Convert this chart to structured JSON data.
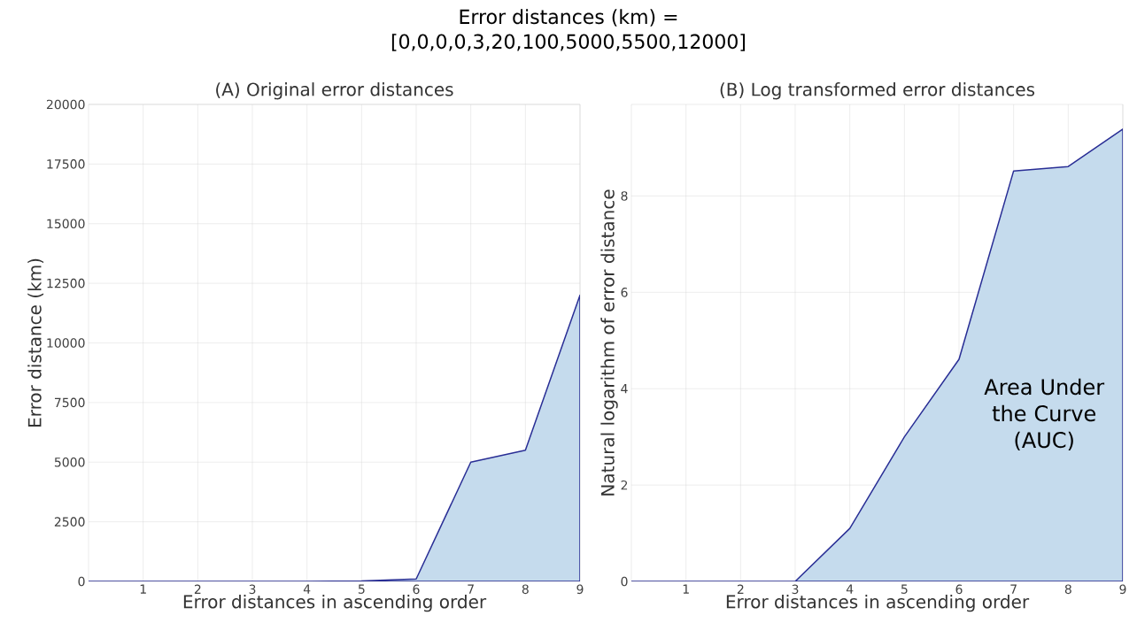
{
  "chart_data": [
    {
      "type": "area",
      "title": "(A) Original error distances",
      "xlabel": "Error distances in ascending order",
      "ylabel": "Error distance (km)",
      "x": [
        0,
        1,
        2,
        3,
        4,
        5,
        6,
        7,
        8,
        9
      ],
      "values": [
        0,
        0,
        0,
        0,
        3,
        20,
        100,
        5000,
        5500,
        12000
      ],
      "color": "#c5dbed",
      "xlim": [
        0,
        9
      ],
      "ylim": [
        0,
        20000
      ],
      "xticks": [
        1,
        2,
        3,
        4,
        5,
        6,
        7,
        8,
        9
      ],
      "yticks": [
        0,
        2500,
        5000,
        7500,
        10000,
        12500,
        15000,
        17500,
        20000
      ],
      "grid": true,
      "annotations": [
        "Error distances (km) =",
        "[0,0,0,0,3,20,100,5000,5500,12000]"
      ]
    },
    {
      "type": "area",
      "title": "(B) Log transformed error distances",
      "xlabel": "Error distances in ascending order",
      "ylabel": "Natural logarithm of error distance",
      "x": [
        0,
        1,
        2,
        3,
        4,
        5,
        6,
        7,
        8,
        9
      ],
      "values": [
        0,
        0,
        0,
        0,
        1.1,
        3.0,
        4.61,
        8.52,
        8.61,
        9.39
      ],
      "color": "#c5dbed",
      "xlim": [
        0,
        9
      ],
      "ylim": [
        0,
        9.9
      ],
      "xticks": [
        1,
        2,
        3,
        4,
        5,
        6,
        7,
        8,
        9
      ],
      "yticks": [
        0,
        2,
        4,
        6,
        8
      ],
      "grid": true,
      "annotations": [
        "Area Under the Curve (AUC)"
      ]
    }
  ]
}
